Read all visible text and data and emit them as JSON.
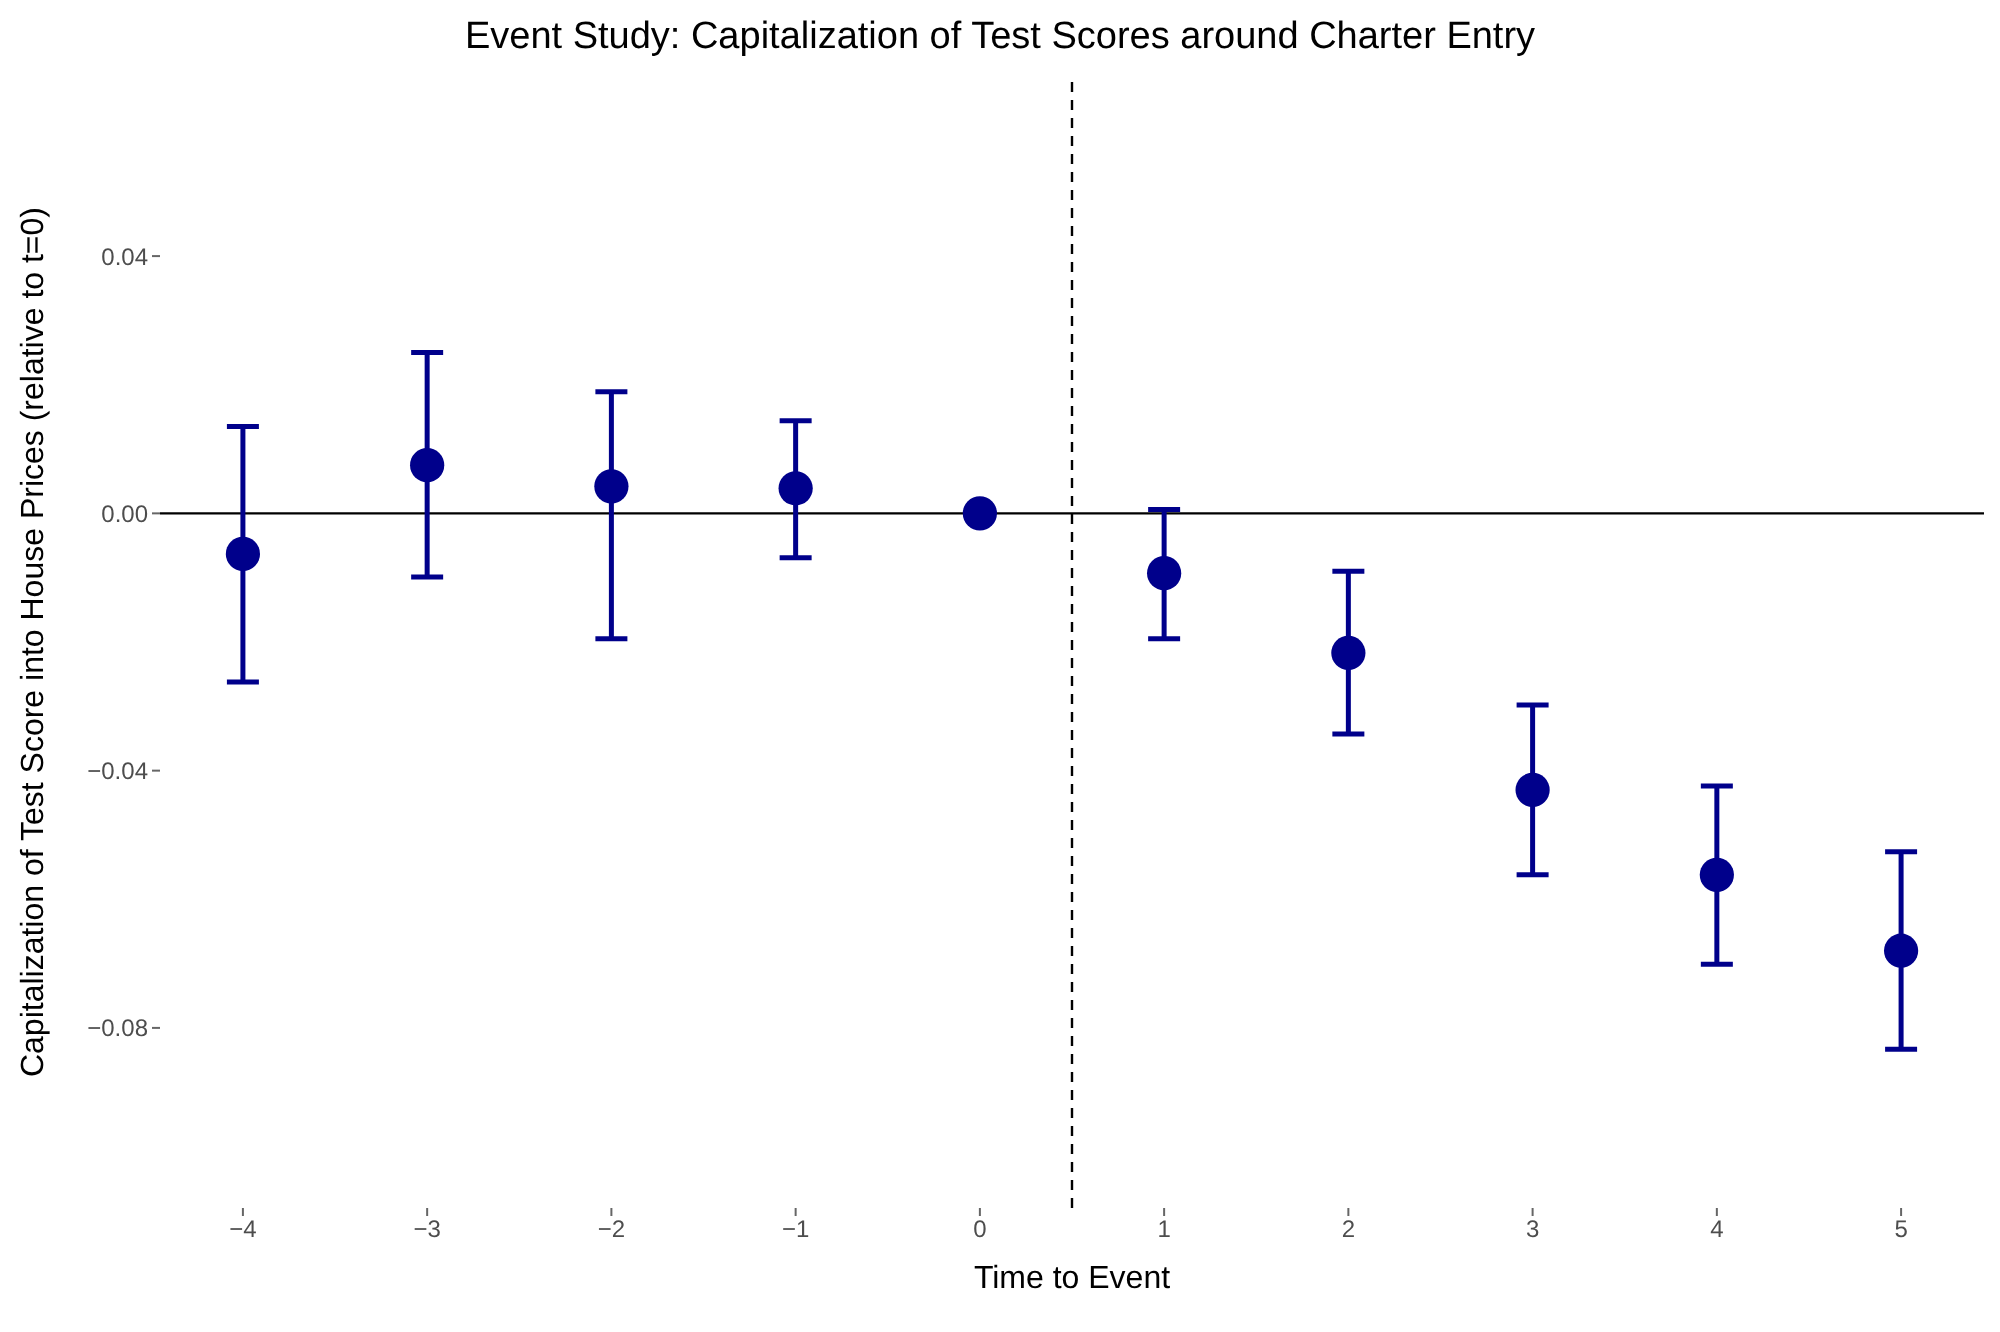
{
  "chart_data": {
    "type": "scatter",
    "title": "Event Study: Capitalization of Test Scores around Charter Entry",
    "xlabel": "Time to Event",
    "ylabel": "Capitalization of Test Score into House Prices (relative to t=0)",
    "x": [
      -4,
      -3,
      -2,
      -1,
      0,
      1,
      2,
      3,
      4,
      5
    ],
    "series": [
      {
        "color": "#00008b",
        "values": [
          -0.0063,
          0.0075,
          0.0042,
          0.0039,
          0.0,
          -0.0093,
          -0.0217,
          -0.043,
          -0.0562,
          -0.068
        ],
        "errors": [
          [
            -0.0262,
            0.0135
          ],
          [
            -0.0099,
            0.025
          ],
          [
            -0.0195,
            0.0189
          ],
          [
            -0.0069,
            0.0144
          ],
          null,
          [
            -0.0195,
            0.0006
          ],
          [
            -0.0343,
            -0.009
          ],
          [
            -0.0562,
            -0.0298
          ],
          [
            -0.0701,
            -0.0424
          ],
          [
            -0.0833,
            -0.0526
          ]
        ]
      }
    ],
    "xlim": [
      -4.45,
      5.45
    ],
    "ylim": [
      -0.108,
      0.068
    ],
    "xticks": [
      {
        "value": -4,
        "label": "−4"
      },
      {
        "value": -3,
        "label": "−3"
      },
      {
        "value": -2,
        "label": "−2"
      },
      {
        "value": -1,
        "label": "−1"
      },
      0,
      1,
      2,
      3,
      4,
      5
    ],
    "yticks": [
      {
        "value": -0.08,
        "label": "−0.08"
      },
      {
        "value": -0.04,
        "label": "−0.04"
      },
      {
        "value": 0,
        "label": "0.00"
      },
      {
        "value": 0.04,
        "label": "0.04"
      }
    ],
    "ref_lines": [
      {
        "axis": "y",
        "value": 0,
        "color": "#000000",
        "line_style": "solid"
      },
      {
        "axis": "x",
        "value": 0.5,
        "color": "#000000",
        "line_style": "dashed"
      }
    ],
    "marker": "circle",
    "grid": false
  }
}
